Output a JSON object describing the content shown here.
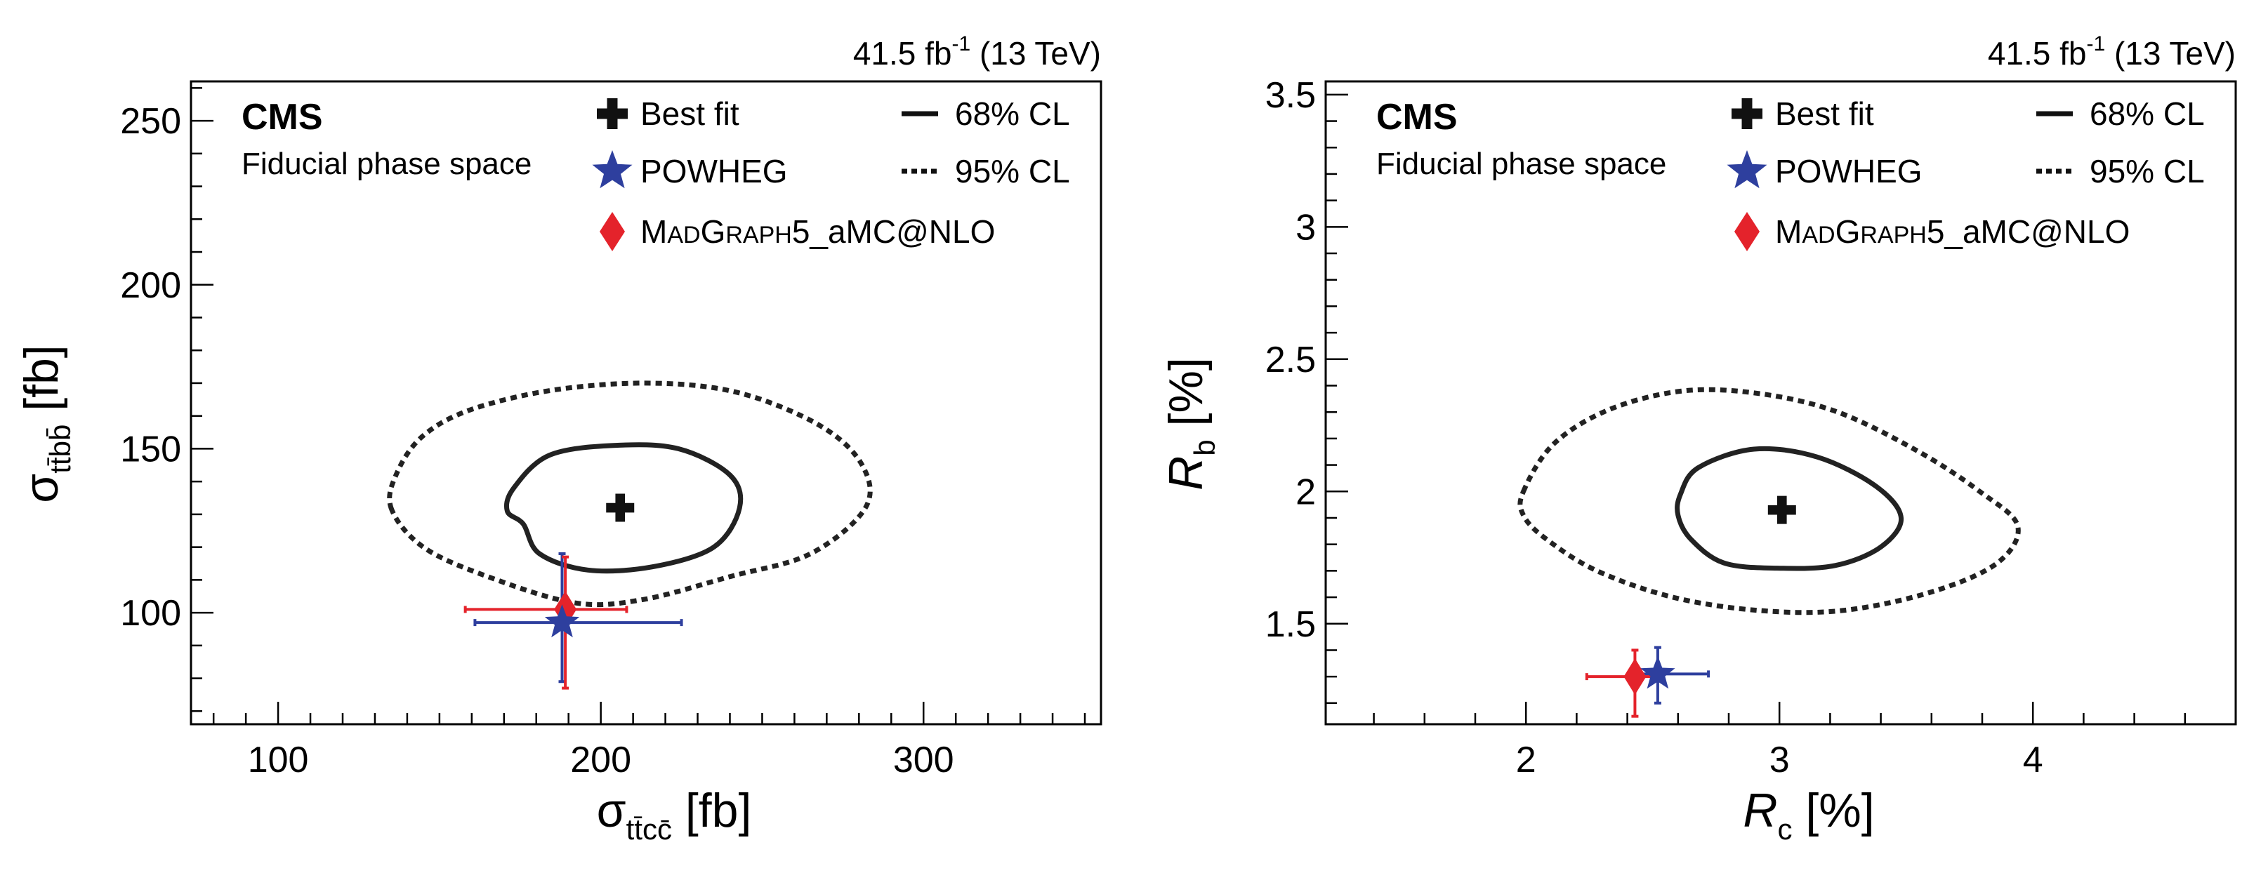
{
  "colors": {
    "fit": "#111111",
    "powheg": "#2e3f9e",
    "madgraph": "#e4232b"
  },
  "icons": {
    "best_fit": "cross-marker",
    "powheg": "star-marker",
    "madgraph": "diamond-marker"
  },
  "chart_data": [
    {
      "type": "scatter",
      "lumi_label": "41.5 fb",
      "lumi_exp": "-1",
      "energy_label": "(13 TeV)",
      "experiment": "CMS",
      "subtitle": "Fiducial phase space",
      "xlabel": {
        "main": "σ",
        "sub": "tt̄cc̄",
        "unit": "[fb]"
      },
      "ylabel": {
        "main": "σ",
        "sub": "tt̄bb̄",
        "unit": "[fb]"
      },
      "xlim": [
        73,
        355
      ],
      "ylim": [
        66,
        262
      ],
      "xticks": [
        100,
        200,
        300
      ],
      "yticks": [
        100,
        150,
        200,
        250
      ],
      "xtick_labels": [
        "100",
        "200",
        "300"
      ],
      "ytick_labels": [
        "100",
        "150",
        "200",
        "250"
      ],
      "legend": {
        "best_fit": "Best fit",
        "powheg": "POWHEG",
        "madgraph_cap1": "M",
        "madgraph_sc1": "AD",
        "madgraph_cap2": "G",
        "madgraph_sc2": "RAPH",
        "madgraph_rest": "5_aMC@NLO",
        "cl68": "68% CL",
        "cl95": "95% CL"
      },
      "best_fit": {
        "x": 206,
        "y": 132
      },
      "contour_68": [
        [
          176,
          127
        ],
        [
          181,
          118
        ],
        [
          196,
          113
        ],
        [
          216,
          114
        ],
        [
          235,
          120
        ],
        [
          243,
          132
        ],
        [
          240,
          142
        ],
        [
          224,
          150
        ],
        [
          204,
          151
        ],
        [
          184,
          148
        ],
        [
          173,
          138
        ],
        [
          171,
          131
        ]
      ],
      "contour_95": [
        [
          135,
          132
        ],
        [
          145,
          120
        ],
        [
          165,
          111
        ],
        [
          192,
          103
        ],
        [
          213,
          104
        ],
        [
          240,
          111
        ],
        [
          265,
          118
        ],
        [
          282,
          132
        ],
        [
          281,
          145
        ],
        [
          268,
          157
        ],
        [
          243,
          167
        ],
        [
          216,
          170
        ],
        [
          186,
          168
        ],
        [
          160,
          162
        ],
        [
          145,
          154
        ],
        [
          137,
          143
        ]
      ],
      "powheg": {
        "x": 188,
        "y": 97,
        "x_err": [
          161,
          225
        ],
        "y_err": [
          79,
          118
        ]
      },
      "madgraph": {
        "x": 189,
        "y": 101,
        "x_err": [
          158,
          208
        ],
        "y_err": [
          77,
          117
        ]
      }
    },
    {
      "type": "scatter",
      "lumi_label": "41.5 fb",
      "lumi_exp": "-1",
      "energy_label": "(13 TeV)",
      "experiment": "CMS",
      "subtitle": "Fiducial phase space",
      "xlabel": {
        "main": "R",
        "sub": "c",
        "unit": "[%]"
      },
      "ylabel": {
        "main": "R",
        "sub": "b",
        "unit": "[%]"
      },
      "xlim": [
        1.21,
        4.8
      ],
      "ylim": [
        1.12,
        3.55
      ],
      "xticks": [
        2,
        3,
        4
      ],
      "yticks": [
        1.5,
        2,
        2.5,
        3,
        3.5
      ],
      "xtick_labels": [
        "2",
        "3",
        "4"
      ],
      "ytick_labels": [
        "1.5",
        "2",
        "2.5",
        "3",
        "3.5"
      ],
      "legend": {
        "best_fit": "Best fit",
        "powheg": "POWHEG",
        "madgraph_cap1": "M",
        "madgraph_sc1": "AD",
        "madgraph_cap2": "G",
        "madgraph_sc2": "RAPH",
        "madgraph_rest": "5_aMC@NLO",
        "cl68": "68% CL",
        "cl95": "95% CL"
      },
      "best_fit": {
        "x": 3.01,
        "y": 1.93
      },
      "contour_68": [
        [
          2.61,
          1.99
        ],
        [
          2.68,
          2.09
        ],
        [
          2.9,
          2.16
        ],
        [
          3.15,
          2.13
        ],
        [
          3.38,
          2.02
        ],
        [
          3.48,
          1.9
        ],
        [
          3.4,
          1.79
        ],
        [
          3.22,
          1.72
        ],
        [
          2.99,
          1.71
        ],
        [
          2.78,
          1.73
        ],
        [
          2.65,
          1.82
        ],
        [
          2.6,
          1.91
        ]
      ],
      "contour_95": [
        [
          1.99,
          2.0
        ],
        [
          2.11,
          2.18
        ],
        [
          2.33,
          2.31
        ],
        [
          2.62,
          2.38
        ],
        [
          2.92,
          2.37
        ],
        [
          3.23,
          2.3
        ],
        [
          3.55,
          2.15
        ],
        [
          3.79,
          2.0
        ],
        [
          3.94,
          1.87
        ],
        [
          3.86,
          1.73
        ],
        [
          3.6,
          1.62
        ],
        [
          3.25,
          1.55
        ],
        [
          2.92,
          1.55
        ],
        [
          2.58,
          1.6
        ],
        [
          2.28,
          1.7
        ],
        [
          2.08,
          1.82
        ],
        [
          1.99,
          1.91
        ]
      ],
      "powheg": {
        "x": 2.52,
        "y": 1.31,
        "x_err": [
          2.44,
          2.72
        ],
        "y_err": [
          1.2,
          1.41
        ]
      },
      "madgraph": {
        "x": 2.43,
        "y": 1.3,
        "x_err": [
          2.24,
          2.5
        ],
        "y_err": [
          1.15,
          1.4
        ]
      }
    }
  ]
}
